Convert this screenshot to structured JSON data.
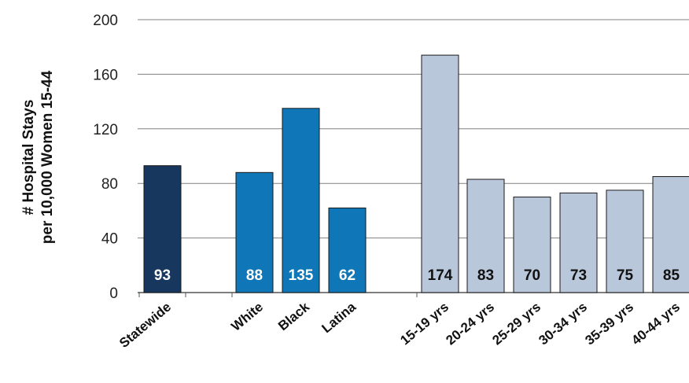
{
  "chart_data": {
    "type": "bar",
    "title": "",
    "ylabel_lines": [
      "# Hospital Stays",
      "per 10,000 Women 15-44"
    ],
    "ylim": [
      0,
      200
    ],
    "yticks": [
      "0",
      "40",
      "80",
      "120",
      "160",
      "200"
    ],
    "grid": "horizontal",
    "categories": [
      "Statewide",
      "White",
      "Black",
      "Latina",
      "15-19 yrs",
      "20-24 yrs",
      "25-29 yrs",
      "30-34 yrs",
      "35-39 yrs",
      "40-44 yrs"
    ],
    "values": [
      93,
      88,
      135,
      62,
      174,
      83,
      70,
      73,
      75,
      85
    ],
    "value_labels": [
      "93",
      "88",
      "135",
      "62",
      "174",
      "83",
      "70",
      "73",
      "75",
      "85"
    ],
    "groups": [
      "statewide",
      "race",
      "race",
      "race",
      "age",
      "age",
      "age",
      "age",
      "age",
      "age"
    ],
    "colors": {
      "statewide": "#17375e",
      "race": "#0f77b8",
      "age": "#b9c7da",
      "label_light": "#ffffff",
      "label_dark": "#111111",
      "grid": "#808080"
    }
  }
}
